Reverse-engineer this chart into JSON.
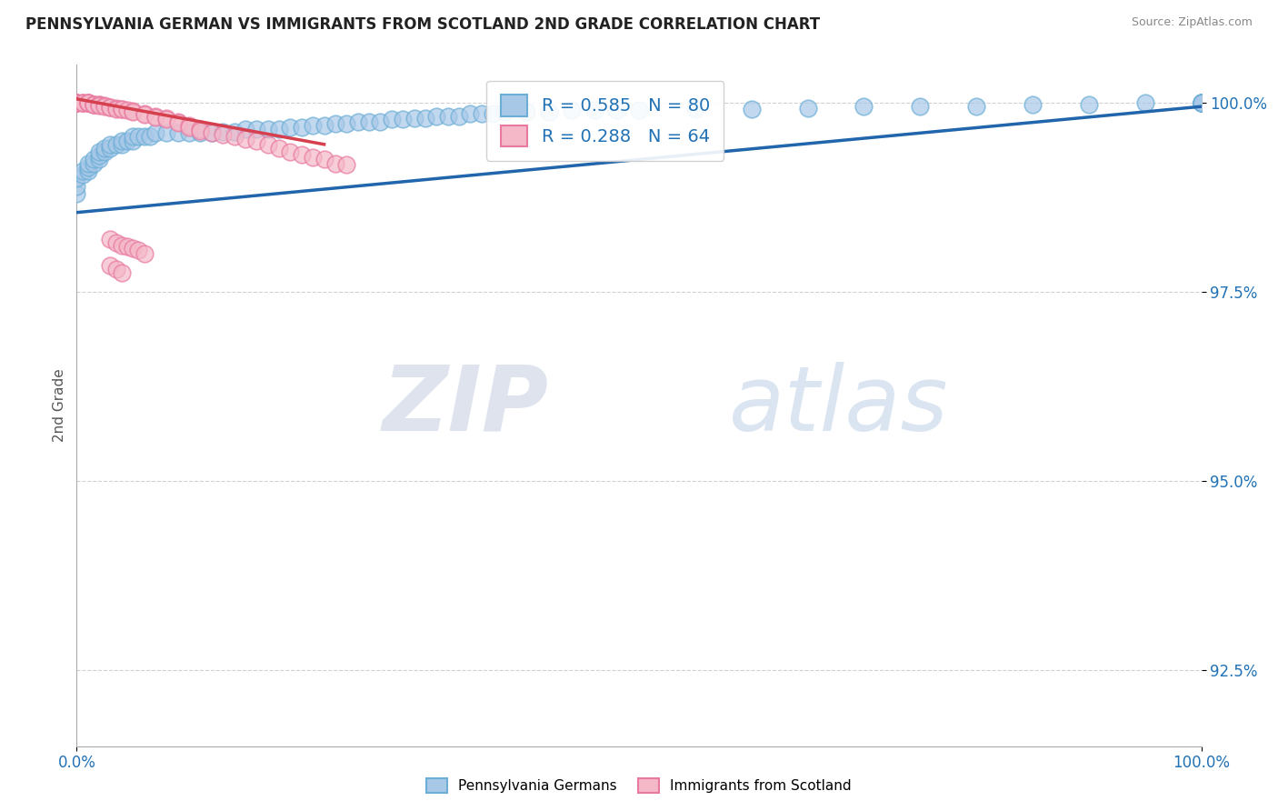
{
  "title": "PENNSYLVANIA GERMAN VS IMMIGRANTS FROM SCOTLAND 2ND GRADE CORRELATION CHART",
  "source": "Source: ZipAtlas.com",
  "ylabel": "2nd Grade",
  "xlim": [
    0.0,
    1.0
  ],
  "ylim": [
    0.915,
    1.005
  ],
  "yticks": [
    0.925,
    0.95,
    0.975,
    1.0
  ],
  "ytick_labels": [
    "92.5%",
    "95.0%",
    "97.5%",
    "100.0%"
  ],
  "blue_R": 0.585,
  "blue_N": 80,
  "pink_R": 0.288,
  "pink_N": 64,
  "blue_color": "#a8c8e8",
  "blue_edge_color": "#6baed6",
  "pink_color": "#f4b8c8",
  "pink_edge_color": "#e879a0",
  "blue_line_color": "#2166ac",
  "pink_line_color": "#d6404e",
  "legend_blue_label": "Pennsylvania Germans",
  "legend_pink_label": "Immigrants from Scotland",
  "watermark_zip": "ZIP",
  "watermark_atlas": "atlas",
  "background_color": "#ffffff",
  "grid_color": "#cccccc",
  "blue_line_x": [
    0.0,
    1.0
  ],
  "blue_line_y": [
    0.9855,
    0.9995
  ],
  "pink_line_x": [
    0.0,
    0.22
  ],
  "pink_line_y": [
    1.0005,
    0.9945
  ],
  "blue_scatter_x": [
    0.0,
    0.0,
    0.0,
    0.005,
    0.005,
    0.01,
    0.01,
    0.01,
    0.015,
    0.015,
    0.02,
    0.02,
    0.02,
    0.025,
    0.025,
    0.03,
    0.03,
    0.035,
    0.04,
    0.04,
    0.045,
    0.05,
    0.05,
    0.055,
    0.06,
    0.065,
    0.07,
    0.08,
    0.09,
    0.1,
    0.11,
    0.12,
    0.13,
    0.14,
    0.15,
    0.16,
    0.17,
    0.18,
    0.19,
    0.2,
    0.21,
    0.22,
    0.23,
    0.24,
    0.25,
    0.26,
    0.27,
    0.28,
    0.29,
    0.3,
    0.31,
    0.32,
    0.33,
    0.34,
    0.35,
    0.36,
    0.37,
    0.38,
    0.4,
    0.42,
    0.44,
    0.46,
    0.48,
    0.5,
    0.55,
    0.6,
    0.65,
    0.7,
    0.75,
    0.8,
    0.85,
    0.9,
    0.95,
    1.0,
    1.0,
    1.0,
    1.0,
    1.0,
    1.0,
    1.0
  ],
  "blue_scatter_y": [
    0.988,
    0.989,
    0.99,
    0.9905,
    0.991,
    0.991,
    0.9915,
    0.992,
    0.992,
    0.9925,
    0.9925,
    0.993,
    0.9935,
    0.9935,
    0.994,
    0.994,
    0.9945,
    0.9945,
    0.9945,
    0.995,
    0.995,
    0.995,
    0.9955,
    0.9955,
    0.9955,
    0.9955,
    0.996,
    0.996,
    0.996,
    0.996,
    0.996,
    0.996,
    0.9962,
    0.9962,
    0.9965,
    0.9965,
    0.9965,
    0.9965,
    0.9968,
    0.9968,
    0.997,
    0.997,
    0.9972,
    0.9972,
    0.9975,
    0.9975,
    0.9975,
    0.9978,
    0.9978,
    0.998,
    0.998,
    0.9982,
    0.9982,
    0.9982,
    0.9985,
    0.9985,
    0.9985,
    0.9988,
    0.9988,
    0.9988,
    0.999,
    0.999,
    0.999,
    0.999,
    0.9992,
    0.9992,
    0.9993,
    0.9995,
    0.9995,
    0.9995,
    0.9998,
    0.9998,
    1.0,
    1.0,
    1.0,
    1.0,
    1.0,
    1.0,
    1.0,
    1.0
  ],
  "pink_scatter_x": [
    0.0,
    0.0,
    0.0,
    0.0,
    0.0,
    0.005,
    0.005,
    0.005,
    0.01,
    0.01,
    0.01,
    0.01,
    0.015,
    0.015,
    0.015,
    0.02,
    0.02,
    0.02,
    0.025,
    0.025,
    0.03,
    0.03,
    0.035,
    0.035,
    0.04,
    0.04,
    0.045,
    0.05,
    0.05,
    0.06,
    0.06,
    0.07,
    0.07,
    0.08,
    0.08,
    0.09,
    0.09,
    0.1,
    0.1,
    0.11,
    0.11,
    0.12,
    0.13,
    0.14,
    0.15,
    0.16,
    0.17,
    0.18,
    0.19,
    0.2,
    0.21,
    0.22,
    0.23,
    0.24,
    0.03,
    0.035,
    0.04,
    0.045,
    0.05,
    0.055,
    0.06,
    0.03,
    0.035,
    0.04
  ],
  "pink_scatter_y": [
    1.0,
    1.0,
    1.0,
    1.0,
    1.0,
    1.0,
    1.0,
    1.0,
    1.0,
    1.0,
    1.0,
    1.0,
    0.9998,
    0.9998,
    0.9998,
    0.9997,
    0.9997,
    0.9996,
    0.9996,
    0.9995,
    0.9994,
    0.9994,
    0.9993,
    0.9992,
    0.9992,
    0.9991,
    0.999,
    0.9989,
    0.9988,
    0.9985,
    0.9984,
    0.9982,
    0.9981,
    0.998,
    0.9978,
    0.9975,
    0.9974,
    0.997,
    0.9968,
    0.9965,
    0.9963,
    0.996,
    0.9958,
    0.9955,
    0.9952,
    0.995,
    0.9945,
    0.994,
    0.9935,
    0.9932,
    0.9928,
    0.9925,
    0.992,
    0.9918,
    0.982,
    0.9815,
    0.9812,
    0.981,
    0.9808,
    0.9805,
    0.98,
    0.9785,
    0.978,
    0.9775
  ]
}
